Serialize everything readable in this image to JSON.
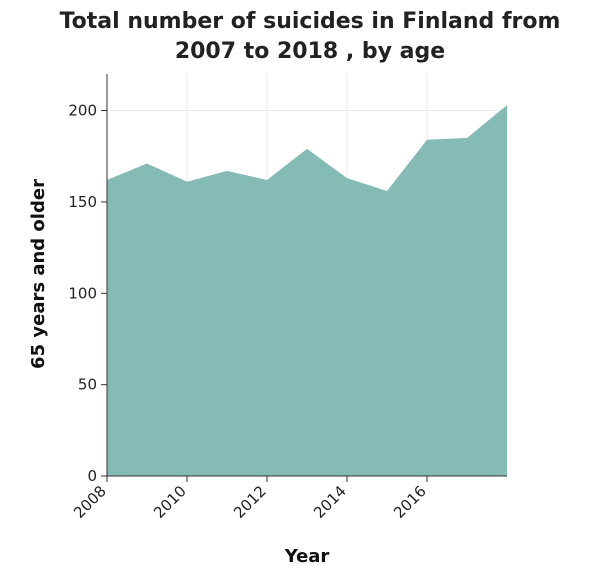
{
  "chart_data": {
    "type": "area",
    "title_lines": [
      "Total number of suicides in Finland from",
      "2007 to 2018 , by age"
    ],
    "xlabel": "Year",
    "ylabel": "65 years and older",
    "x": [
      2008,
      2009,
      2010,
      2011,
      2012,
      2013,
      2014,
      2015,
      2016,
      2017,
      2018
    ],
    "series": [
      {
        "values": [
          162,
          171,
          161,
          167,
          162,
          179,
          163,
          156,
          184,
          185,
          203
        ],
        "color": "#84bbb5"
      }
    ],
    "xlim": [
      2008,
      2018
    ],
    "ylim": [
      0,
      220
    ],
    "xticks": [
      2008,
      2010,
      2012,
      2014,
      2016
    ],
    "yticks": [
      0,
      50,
      100,
      150,
      200
    ],
    "grid": true,
    "grid_color": "#ebebeb"
  }
}
